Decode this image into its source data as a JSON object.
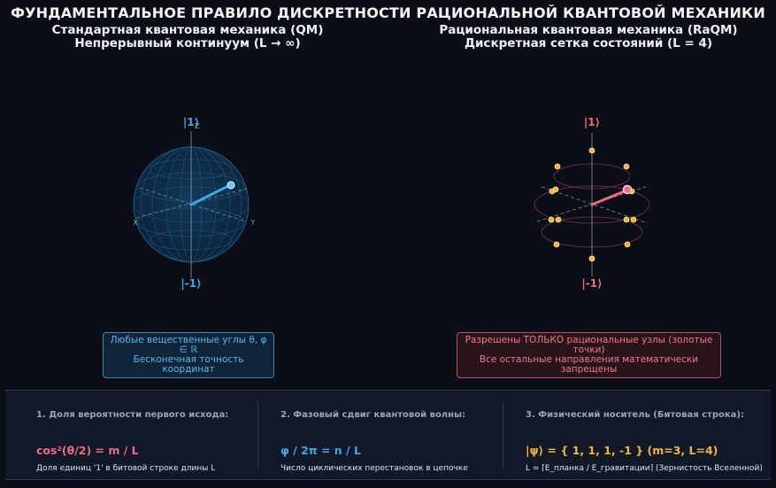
{
  "title": "ФУНДАМЕНТАЛЬНОЕ ПРАВИЛО ДИСКРЕТНОСТИ РАЦИОНАЛЬНОЙ КВАНТОВОЙ МЕХАНИКИ",
  "left_panel": {
    "title_line1": "Стандартная квантовая механика (QM)",
    "title_line2": "Непрерывный континуум (L → ∞)",
    "top_state": "|1⟩",
    "bottom_state": "|-1⟩",
    "axis_x": "X",
    "axis_y": "Y",
    "axis_z": "Z",
    "note_line1": "Любые вещественные углы θ, φ ∈ ℝ",
    "note_line2": "Бесконечная точность координат",
    "color": "#3fa9e6"
  },
  "right_panel": {
    "title_line1": "Рациональная квантовая механика (RaQM)",
    "title_line2": "Дискретная сетка состояний (L = 4)",
    "top_state": "|1⟩",
    "bottom_state": "|-1⟩",
    "note_line1": "Разрешены ТОЛЬКО рациональные узлы (золотые точки)",
    "note_line2": "Все остальные направления математически запрещены",
    "color": "#f06a80",
    "node_color": "#f2b636"
  },
  "footer": {
    "col1": {
      "header": "1. Доля вероятности первого исхода:",
      "formula": "cos²(θ/2) = m / L",
      "desc": "Доля единиц '1' в битовой строке длины L",
      "color": "#f06a80"
    },
    "col2": {
      "header": "2. Фазовый сдвиг квантовой волны:",
      "formula": "φ / 2π = n / L",
      "desc": "Число циклических перестановок в цепочке",
      "color": "#3fa9e6"
    },
    "col3": {
      "header": "3. Физический носитель (Битовая строка):",
      "formula": "|ψ⟩ = { 1,  1,  1, -1 }  (m=3, L=4)",
      "desc": "L = ⌈E_планка / E_гравитации⌉ (Зернистость Вселенной)",
      "color": "#f2b636"
    }
  }
}
